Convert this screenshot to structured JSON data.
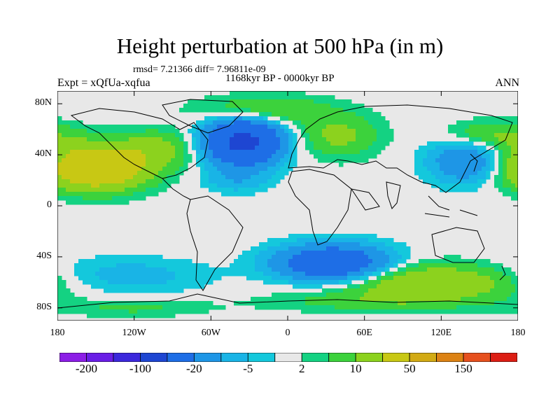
{
  "title": "Height perturbation at 500 hPa (in m)",
  "stats": "rmsd= 7.21366 diff= 7.96811e-09",
  "period": "1168kyr BP - 0000kyr BP",
  "experiment": "Expt = xQfUa-xqfua",
  "season": "ANN",
  "lat_ticks": [
    "80N",
    "40N",
    "0",
    "40S",
    "80S"
  ],
  "lat_values": [
    80,
    40,
    0,
    -40,
    -80
  ],
  "lon_ticks": [
    "180",
    "120W",
    "60W",
    "0",
    "60E",
    "120E",
    "180"
  ],
  "lon_values": [
    -180,
    -120,
    -60,
    0,
    60,
    120,
    180
  ],
  "colorbar": {
    "colors": [
      "#8c1ee6",
      "#6a1ee6",
      "#3c28dc",
      "#1e46d2",
      "#1e6ee6",
      "#1e96e6",
      "#19b4e6",
      "#14c8dc",
      "#e8e8e8",
      "#14d282",
      "#3cd23c",
      "#8cd21e",
      "#c8c814",
      "#d2aa14",
      "#dc8214",
      "#e6501e",
      "#dc1e14"
    ],
    "labels": [
      "-200",
      "-100",
      "-20",
      "-5",
      "2",
      "10",
      "50",
      "150"
    ]
  },
  "features": [
    {
      "lon": -150,
      "lat": 30,
      "sx": 28,
      "sy": 12,
      "v": 40
    },
    {
      "lon": -130,
      "lat": -55,
      "sx": 45,
      "sy": 10,
      "v": -8
    },
    {
      "lon": -100,
      "lat": 45,
      "sx": 22,
      "sy": 10,
      "v": 12
    },
    {
      "lon": -35,
      "lat": 50,
      "sx": 20,
      "sy": 12,
      "v": -60
    },
    {
      "lon": 35,
      "lat": -45,
      "sx": 30,
      "sy": 10,
      "v": -40
    },
    {
      "lon": 110,
      "lat": -60,
      "sx": 50,
      "sy": 10,
      "v": 20
    },
    {
      "lon": 140,
      "lat": 35,
      "sx": 20,
      "sy": 12,
      "v": -20
    },
    {
      "lon": 40,
      "lat": 55,
      "sx": 22,
      "sy": 12,
      "v": 12
    },
    {
      "lon": -20,
      "lat": 75,
      "sx": 35,
      "sy": 8,
      "v": 12
    },
    {
      "lon": 160,
      "lat": 55,
      "sx": 25,
      "sy": 8,
      "v": 12
    },
    {
      "lon": -40,
      "lat": 20,
      "sx": 18,
      "sy": 7,
      "v": -8
    },
    {
      "lon": 60,
      "lat": -75,
      "sx": 60,
      "sy": 6,
      "v": 6
    },
    {
      "lon": -120,
      "lat": -80,
      "sx": 40,
      "sy": 5,
      "v": 6
    }
  ]
}
